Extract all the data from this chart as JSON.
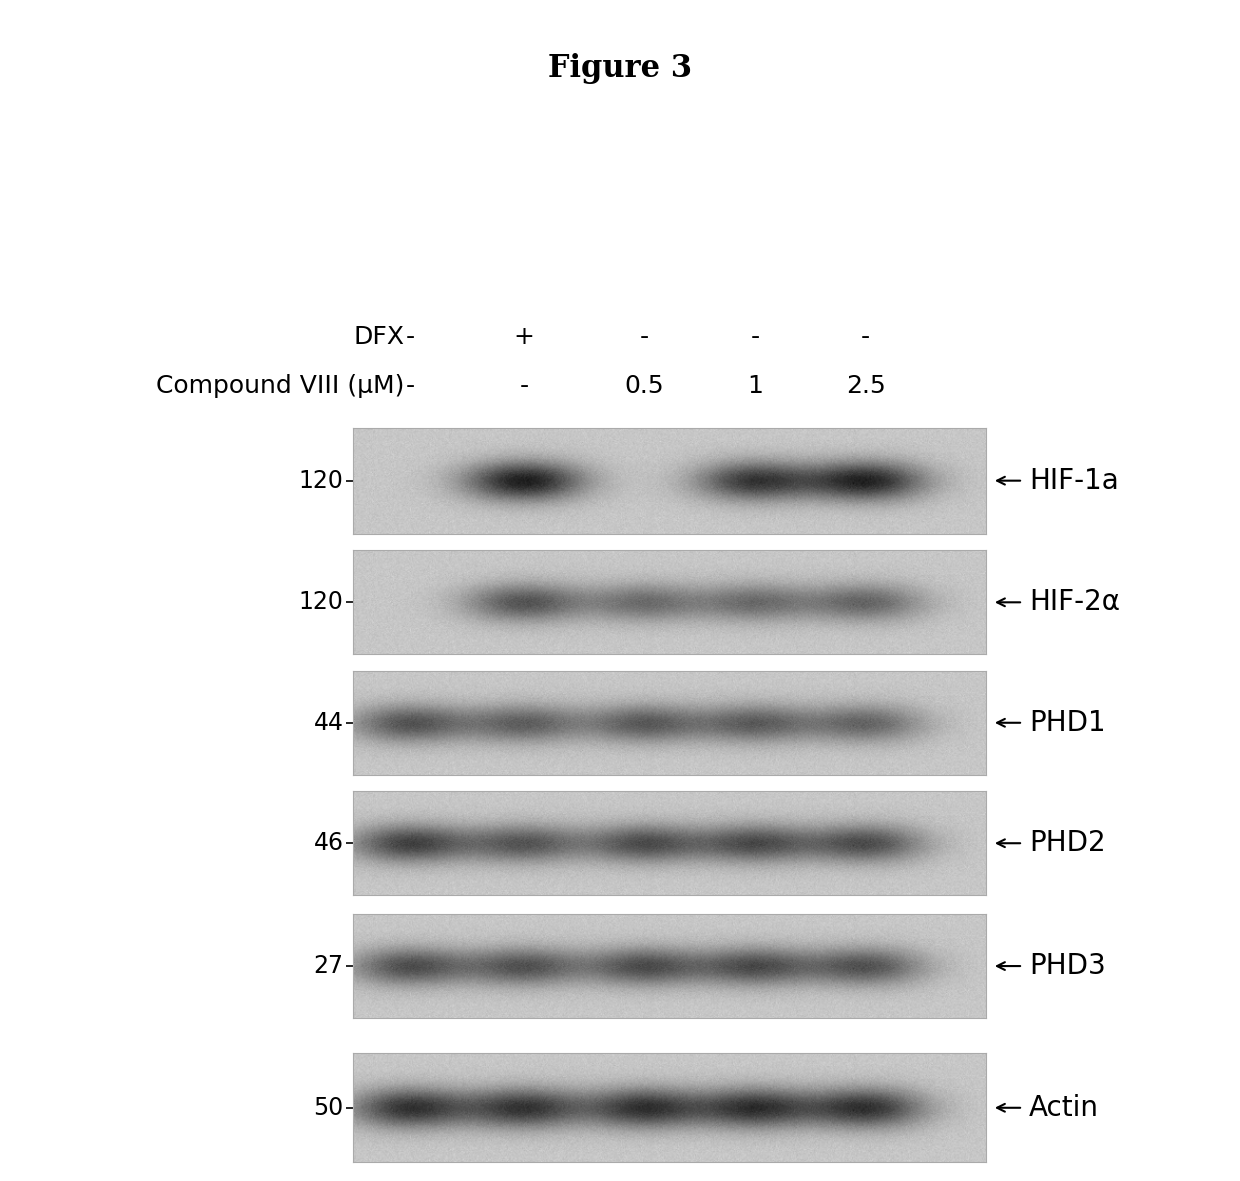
{
  "title": "Figure 3",
  "title_fontsize": 22,
  "title_fontweight": "bold",
  "background_color": "#ffffff",
  "fig_width": 12.4,
  "fig_height": 11.81,
  "dfx_label": "DFX",
  "compound_label": "Compound VIII (μM)",
  "dfx_values": [
    "-",
    "+",
    "-",
    "-",
    "-"
  ],
  "compound_values": [
    "-",
    "-",
    "0.5",
    "1",
    "2.5"
  ],
  "blots": [
    {
      "label": "HIF-1a",
      "mw": "120"
    },
    {
      "label": "HIF-2α",
      "mw": "120"
    },
    {
      "label": "PHD1",
      "mw": "44"
    },
    {
      "label": "PHD2",
      "mw": "46"
    },
    {
      "label": "PHD3",
      "mw": "27"
    },
    {
      "label": "Actin",
      "mw": "50"
    }
  ],
  "panel_bg_color": [
    0.78,
    0.78,
    0.78
  ],
  "header_fontsize": 18,
  "mw_fontsize": 17,
  "label_fontsize": 20,
  "n_lanes": 5,
  "blot_intensities": [
    [
      0.0,
      0.92,
      0.0,
      0.78,
      0.88
    ],
    [
      0.0,
      0.62,
      0.48,
      0.48,
      0.52
    ],
    [
      0.62,
      0.55,
      0.58,
      0.56,
      0.52
    ],
    [
      0.72,
      0.6,
      0.65,
      0.65,
      0.65
    ],
    [
      0.65,
      0.62,
      0.65,
      0.65,
      0.62
    ],
    [
      0.8,
      0.78,
      0.8,
      0.8,
      0.8
    ]
  ]
}
